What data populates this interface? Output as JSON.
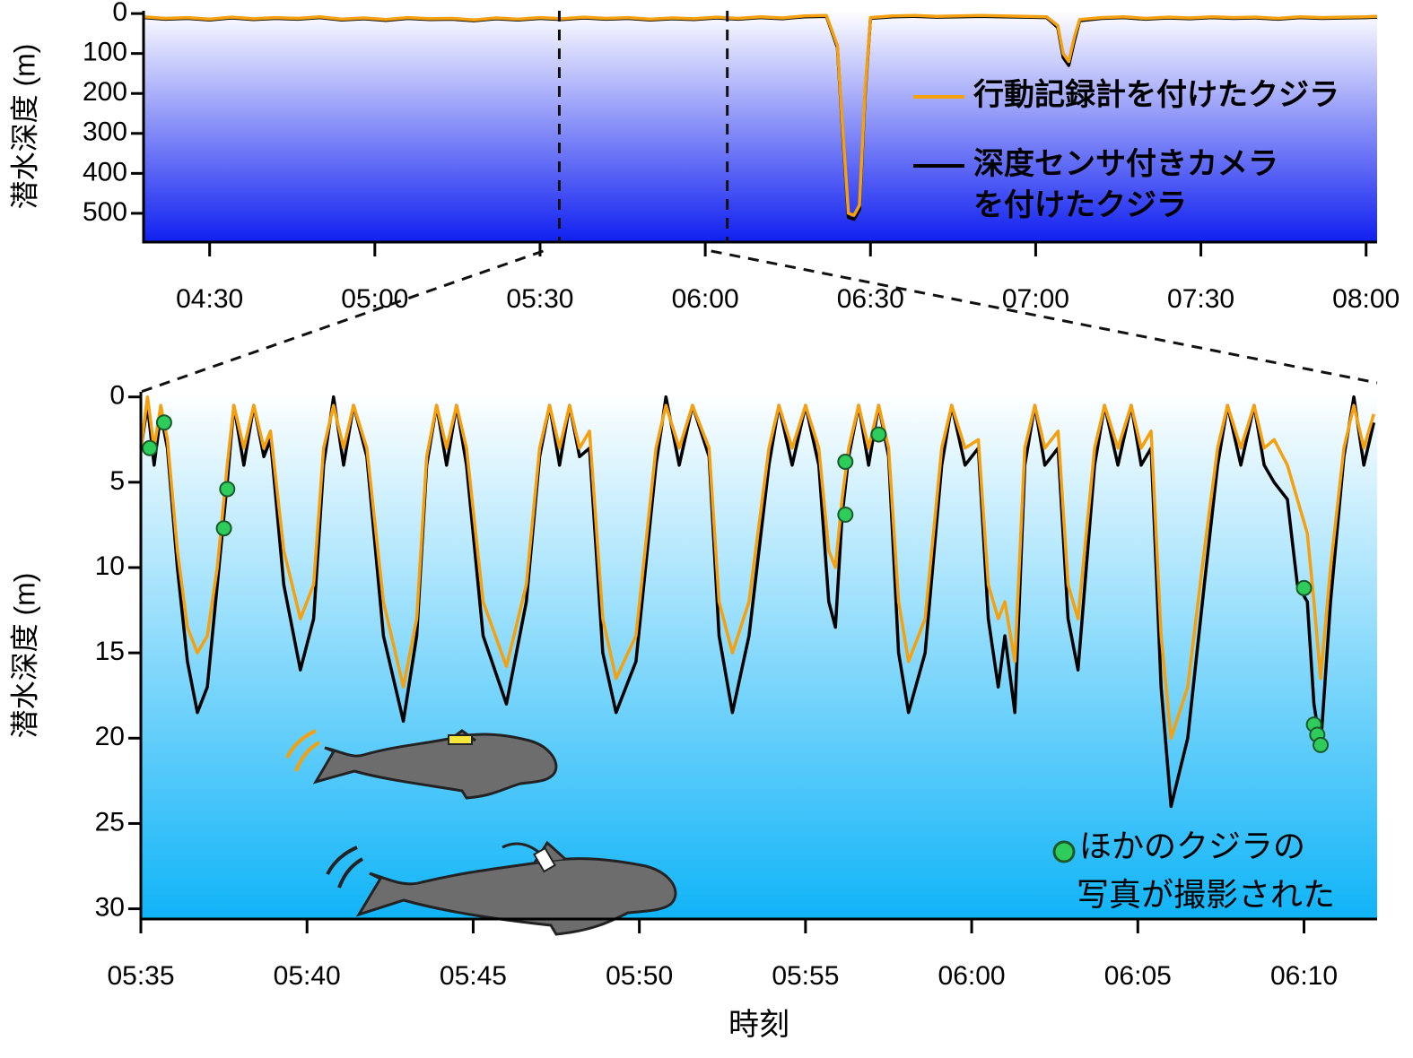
{
  "chart_data": [
    {
      "type": "line",
      "ylabel": "潜水深度 (m)",
      "xlim": [
        258,
        482
      ],
      "ylim": [
        -7,
        572
      ],
      "y_inverted": true,
      "xticks": [
        {
          "value": 270,
          "label": "04:30"
        },
        {
          "value": 300,
          "label": "05:00"
        },
        {
          "value": 330,
          "label": "05:30"
        },
        {
          "value": 360,
          "label": "06:00"
        },
        {
          "value": 390,
          "label": "06:30"
        },
        {
          "value": 420,
          "label": "07:00"
        },
        {
          "value": 450,
          "label": "07:30"
        },
        {
          "value": 480,
          "label": "08:00"
        }
      ],
      "yticks": [
        0,
        100,
        200,
        300,
        400,
        500
      ],
      "background": [
        "#ffffff",
        "#1020f0"
      ],
      "zoom_range": [
        333.5,
        364
      ],
      "x": [
        258,
        262,
        266,
        270,
        274,
        278,
        282,
        286,
        290,
        294,
        298,
        302,
        306,
        310,
        314,
        318,
        322,
        326,
        330,
        334,
        338,
        342,
        346,
        350,
        354,
        358,
        362,
        366,
        370,
        374,
        378,
        382,
        384,
        385,
        386,
        387,
        388,
        389,
        390,
        394,
        398,
        402,
        406,
        410,
        414,
        418,
        422,
        424,
        425,
        426,
        427,
        428,
        432,
        436,
        440,
        444,
        448,
        452,
        456,
        460,
        464,
        468,
        472,
        476,
        480,
        482
      ],
      "series": [
        {
          "name": "深度センサ付きカメラ\nを付けたクジラ",
          "color": "#000000",
          "values": [
            10,
            14,
            12,
            16,
            11,
            15,
            12,
            14,
            10,
            16,
            13,
            17,
            12,
            15,
            14,
            18,
            13,
            16,
            12,
            15,
            11,
            14,
            12,
            16,
            13,
            15,
            11,
            14,
            10,
            13,
            8,
            7,
            85,
            310,
            510,
            515,
            490,
            210,
            12,
            8,
            7,
            9,
            8,
            7,
            8,
            9,
            10,
            35,
            110,
            130,
            70,
            18,
            12,
            10,
            14,
            11,
            13,
            10,
            12,
            11,
            14,
            10,
            12,
            11,
            10,
            9
          ]
        },
        {
          "name": "行動記録計を付けたクジラ",
          "color": "#f5a00f",
          "values": [
            8,
            12,
            10,
            14,
            9,
            13,
            10,
            12,
            8,
            14,
            11,
            15,
            10,
            13,
            12,
            16,
            11,
            14,
            10,
            13,
            9,
            12,
            10,
            14,
            11,
            13,
            9,
            12,
            8,
            11,
            6,
            5,
            80,
            300,
            500,
            505,
            480,
            200,
            10,
            6,
            5,
            7,
            6,
            5,
            6,
            7,
            8,
            30,
            100,
            120,
            60,
            15,
            10,
            8,
            12,
            9,
            11,
            8,
            10,
            9,
            12,
            8,
            10,
            9,
            8,
            7
          ]
        }
      ],
      "legend_order": [
        1,
        0
      ]
    },
    {
      "type": "line",
      "ylabel": "潜水深度 (m)",
      "xlabel": "時刻",
      "xlim": [
        335,
        372.2
      ],
      "ylim": [
        -0.3,
        30.6
      ],
      "y_inverted": true,
      "xticks": [
        {
          "value": 335,
          "label": "05:35"
        },
        {
          "value": 340,
          "label": "05:40"
        },
        {
          "value": 345,
          "label": "05:45"
        },
        {
          "value": 350,
          "label": "05:50"
        },
        {
          "value": 355,
          "label": "05:55"
        },
        {
          "value": 360,
          "label": "06:00"
        },
        {
          "value": 365,
          "label": "06:05"
        },
        {
          "value": 370,
          "label": "06:10"
        }
      ],
      "yticks": [
        0,
        5,
        10,
        15,
        20,
        25,
        30
      ],
      "background": [
        "#ffffff",
        "#10b4f8"
      ],
      "x": [
        335,
        335.2,
        335.4,
        335.6,
        335.8,
        336.1,
        336.4,
        336.7,
        337,
        337.3,
        337.6,
        337.8,
        338.1,
        338.4,
        338.7,
        338.9,
        339.3,
        339.8,
        340.2,
        340.5,
        340.8,
        341.1,
        341.4,
        341.8,
        342.3,
        342.9,
        343.3,
        343.6,
        343.9,
        344.2,
        344.5,
        344.8,
        345.3,
        346,
        346.6,
        347,
        347.3,
        347.6,
        347.9,
        348.2,
        348.5,
        348.9,
        349.3,
        349.9,
        350.5,
        350.8,
        351.2,
        351.6,
        352.1,
        352.4,
        352.8,
        353.3,
        353.9,
        354.2,
        354.6,
        355,
        355.4,
        355.7,
        355.9,
        356.1,
        356.3,
        356.6,
        356.9,
        357.2,
        357.5,
        357.8,
        358.1,
        358.6,
        359.1,
        359.4,
        359.8,
        360.2,
        360.5,
        360.8,
        361,
        361.3,
        361.6,
        361.9,
        362.2,
        362.6,
        362.9,
        363.2,
        363.7,
        364,
        364.4,
        364.8,
        365.1,
        365.4,
        365.7,
        366,
        366.5,
        367,
        367.4,
        367.7,
        368.1,
        368.5,
        368.8,
        369.1,
        369.5,
        369.8,
        370.1,
        370.3,
        370.5,
        370.8,
        371.2,
        371.5,
        371.8,
        372.1
      ],
      "series": [
        {
          "color": "#000000",
          "values": [
            3,
            0.5,
            4,
            1,
            3,
            10,
            15.5,
            18.5,
            17,
            11,
            5,
            0.5,
            4,
            0.5,
            3.5,
            2.5,
            11,
            16,
            13,
            4,
            0,
            4,
            0.5,
            3.5,
            14,
            19,
            14,
            4,
            0.5,
            4,
            0.5,
            4,
            14,
            18,
            12,
            3.5,
            0.5,
            4,
            0.5,
            3.5,
            3,
            15,
            18.5,
            15.5,
            4,
            0,
            4,
            0.5,
            3.5,
            14,
            18.5,
            14,
            4,
            0.5,
            4,
            0.5,
            4,
            12,
            13.5,
            7,
            3.5,
            0.5,
            4,
            0.5,
            3.5,
            15,
            18.5,
            15,
            4,
            0.5,
            4,
            3,
            13,
            17,
            14,
            18.5,
            4,
            0.5,
            4,
            3,
            13,
            16,
            4,
            0.5,
            4,
            0.5,
            4,
            3,
            17,
            24,
            20,
            11,
            4,
            0.5,
            4,
            0.5,
            4,
            5,
            6,
            11,
            12,
            18,
            20.5,
            12,
            3.5,
            0,
            4,
            1.5
          ]
        },
        {
          "color": "#f5a00f",
          "values": [
            3,
            0,
            3,
            0.5,
            2.5,
            9,
            13.5,
            15,
            14,
            10,
            4,
            0.5,
            3,
            0.5,
            3,
            2,
            9,
            13,
            11,
            3,
            0.5,
            3,
            0.5,
            3,
            12,
            17,
            13,
            3.5,
            0.5,
            3,
            0.5,
            3,
            12,
            15.8,
            11,
            3,
            0.5,
            3,
            0.5,
            3,
            2,
            13,
            16.5,
            14,
            3,
            0.5,
            3,
            0.5,
            3,
            12,
            15,
            12,
            3,
            0.5,
            3,
            0.5,
            3,
            9,
            10,
            6,
            3,
            0.5,
            3,
            0.5,
            3,
            12,
            15.5,
            13,
            3,
            0.5,
            3,
            2.5,
            11,
            13,
            12,
            15.5,
            3,
            0.5,
            3,
            2,
            11,
            13,
            3,
            0.5,
            3,
            0.5,
            3,
            2,
            14,
            20,
            17,
            9,
            3,
            0.5,
            3,
            0.5,
            3,
            2.5,
            4,
            6,
            8,
            12,
            16.5,
            10,
            3,
            0.5,
            3,
            1
          ]
        },
        {
          "name": "ほかのクジラの\n写真が撮影された",
          "type": "scatter",
          "color": "#2ecc5a",
          "x": [
            335.27,
            335.7,
            337.6,
            337.5,
            356.2,
            356.2,
            357.2,
            370,
            370.3,
            370.4,
            370.5
          ],
          "values": [
            3,
            1.5,
            5.4,
            7.7,
            3.8,
            6.9,
            2.2,
            11.2,
            19.2,
            19.8,
            20.4
          ]
        }
      ]
    }
  ]
}
